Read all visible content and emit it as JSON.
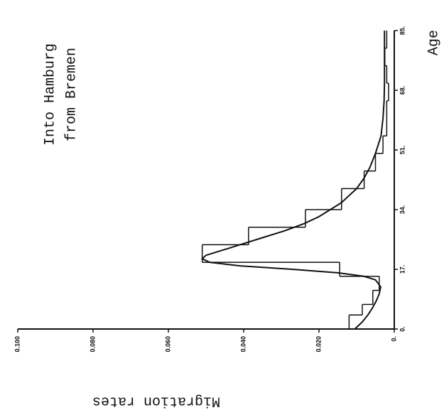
{
  "chart_data": {
    "type": "histogram",
    "title": "Into Hamburg",
    "subtitle": "from Bremen",
    "xlabel": "Age",
    "ylabel": "Migration rates",
    "bins": [
      0,
      4,
      7,
      11,
      15,
      19,
      24,
      29,
      34,
      40,
      45,
      50,
      55,
      60,
      65,
      70,
      75,
      80,
      85
    ],
    "values": [
      0.012,
      0.0085,
      0.0057,
      0.004,
      0.0145,
      0.051,
      0.0387,
      0.0236,
      0.014,
      0.008,
      0.005,
      0.003,
      0.002,
      0.002,
      0.0015,
      0.002,
      0.0025,
      0.002
    ],
    "curve": {
      "x": [
        0,
        2,
        4,
        6,
        8,
        10,
        12,
        14,
        15,
        16,
        17,
        18,
        19,
        20,
        21,
        22,
        23,
        24,
        26,
        28,
        30,
        32,
        34,
        36,
        38,
        40,
        43,
        46,
        50,
        55,
        60,
        65,
        70,
        75,
        80,
        85
      ],
      "values": [
        0.0105,
        0.0085,
        0.007,
        0.0058,
        0.0048,
        0.004,
        0.0036,
        0.005,
        0.008,
        0.015,
        0.027,
        0.041,
        0.049,
        0.051,
        0.05,
        0.047,
        0.044,
        0.041,
        0.035,
        0.029,
        0.024,
        0.02,
        0.017,
        0.014,
        0.012,
        0.01,
        0.008,
        0.0065,
        0.005,
        0.0035,
        0.003,
        0.0027,
        0.0026,
        0.0026,
        0.0026,
        0.0026
      ]
    },
    "color": "#111111",
    "xlim": [
      0,
      85
    ],
    "ylim": [
      0,
      0.1
    ],
    "xticks": [
      {
        "value": 0,
        "label": "0."
      },
      {
        "value": 17,
        "label": "17."
      },
      {
        "value": 34,
        "label": "34."
      },
      {
        "value": 51,
        "label": "51."
      },
      {
        "value": 68,
        "label": "68."
      },
      {
        "value": 85,
        "label": "85."
      }
    ],
    "yticks": [
      {
        "value": 0,
        "label": "0."
      },
      {
        "value": 0.02,
        "label": "0.020"
      },
      {
        "value": 0.04,
        "label": "0.040"
      },
      {
        "value": 0.06,
        "label": "0.060"
      },
      {
        "value": 0.08,
        "label": "0.080"
      },
      {
        "value": 0.1,
        "label": "0.100"
      }
    ]
  }
}
